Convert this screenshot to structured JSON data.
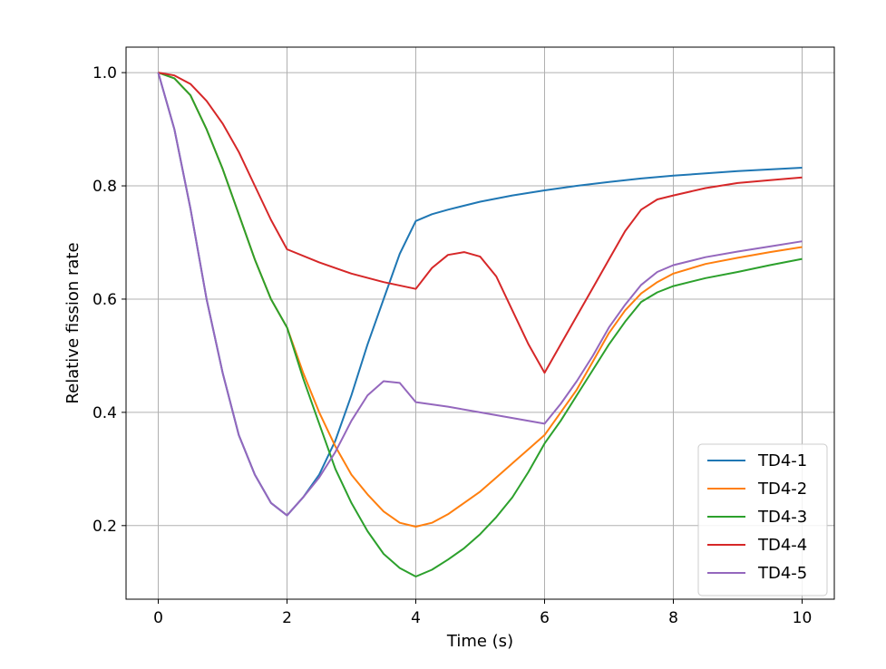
{
  "chart_data": {
    "type": "line",
    "xlabel": "Time (s)",
    "ylabel": "Relative fission rate",
    "xlim": [
      -0.5,
      10.5
    ],
    "ylim": [
      0.07,
      1.045
    ],
    "xticks": [
      0,
      2,
      4,
      6,
      8,
      10
    ],
    "yticks": [
      0.2,
      0.4,
      0.6,
      0.8,
      1.0
    ],
    "xtick_labels": [
      "0",
      "2",
      "4",
      "6",
      "8",
      "10"
    ],
    "ytick_labels": [
      "0.2",
      "0.4",
      "0.6",
      "0.8",
      "1.0"
    ],
    "grid": true,
    "legend_position": "lower-right",
    "series": [
      {
        "name": "TD4-1",
        "color": "#1f77b4",
        "x": [
          0,
          0.25,
          0.5,
          0.75,
          1.0,
          1.25,
          1.5,
          1.75,
          2.0,
          2.25,
          2.5,
          2.75,
          3.0,
          3.25,
          3.5,
          3.75,
          4.0,
          4.25,
          4.5,
          5.0,
          5.5,
          6.0,
          6.5,
          7.0,
          7.5,
          8.0,
          8.5,
          9.0,
          9.5,
          10.0
        ],
        "y": [
          1.0,
          0.9,
          0.76,
          0.6,
          0.47,
          0.36,
          0.29,
          0.24,
          0.218,
          0.25,
          0.29,
          0.35,
          0.43,
          0.52,
          0.6,
          0.68,
          0.738,
          0.75,
          0.758,
          0.772,
          0.783,
          0.792,
          0.8,
          0.807,
          0.813,
          0.818,
          0.822,
          0.826,
          0.829,
          0.832
        ]
      },
      {
        "name": "TD4-2",
        "color": "#ff7f0e",
        "x": [
          0,
          0.25,
          0.5,
          0.75,
          1.0,
          1.25,
          1.5,
          1.75,
          2.0,
          2.25,
          2.5,
          2.75,
          3.0,
          3.25,
          3.5,
          3.75,
          4.0,
          4.25,
          4.5,
          4.75,
          5.0,
          5.25,
          5.5,
          5.75,
          6.0,
          6.25,
          6.5,
          6.75,
          7.0,
          7.25,
          7.5,
          7.75,
          8.0,
          8.5,
          9.0,
          9.5,
          10.0
        ],
        "y": [
          1.0,
          0.99,
          0.96,
          0.9,
          0.83,
          0.75,
          0.67,
          0.6,
          0.55,
          0.47,
          0.4,
          0.34,
          0.29,
          0.255,
          0.225,
          0.205,
          0.198,
          0.205,
          0.22,
          0.24,
          0.26,
          0.285,
          0.31,
          0.335,
          0.36,
          0.4,
          0.44,
          0.49,
          0.54,
          0.58,
          0.61,
          0.63,
          0.645,
          0.662,
          0.673,
          0.683,
          0.692
        ]
      },
      {
        "name": "TD4-3",
        "color": "#2ca02c",
        "x": [
          0,
          0.25,
          0.5,
          0.75,
          1.0,
          1.25,
          1.5,
          1.75,
          2.0,
          2.25,
          2.5,
          2.75,
          3.0,
          3.25,
          3.5,
          3.75,
          4.0,
          4.25,
          4.5,
          4.75,
          5.0,
          5.25,
          5.5,
          5.75,
          6.0,
          6.25,
          6.5,
          6.75,
          7.0,
          7.25,
          7.5,
          7.75,
          8.0,
          8.5,
          9.0,
          9.5,
          10.0
        ],
        "y": [
          1.0,
          0.99,
          0.96,
          0.9,
          0.83,
          0.75,
          0.67,
          0.6,
          0.55,
          0.46,
          0.38,
          0.3,
          0.24,
          0.19,
          0.15,
          0.125,
          0.11,
          0.122,
          0.14,
          0.16,
          0.185,
          0.215,
          0.25,
          0.295,
          0.345,
          0.385,
          0.43,
          0.475,
          0.52,
          0.56,
          0.595,
          0.612,
          0.623,
          0.637,
          0.648,
          0.66,
          0.671
        ]
      },
      {
        "name": "TD4-4",
        "color": "#d62728",
        "x": [
          0,
          0.25,
          0.5,
          0.75,
          1.0,
          1.25,
          1.5,
          1.75,
          2.0,
          2.5,
          3.0,
          3.5,
          4.0,
          4.25,
          4.5,
          4.75,
          5.0,
          5.25,
          5.5,
          5.75,
          6.0,
          6.25,
          6.5,
          6.75,
          7.0,
          7.25,
          7.5,
          7.75,
          8.0,
          8.5,
          9.0,
          9.5,
          10.0
        ],
        "y": [
          1.0,
          0.995,
          0.98,
          0.95,
          0.91,
          0.86,
          0.8,
          0.74,
          0.688,
          0.665,
          0.645,
          0.63,
          0.618,
          0.655,
          0.678,
          0.683,
          0.675,
          0.64,
          0.58,
          0.52,
          0.47,
          0.52,
          0.57,
          0.62,
          0.67,
          0.72,
          0.758,
          0.776,
          0.783,
          0.796,
          0.805,
          0.81,
          0.815
        ]
      },
      {
        "name": "TD4-5",
        "color": "#9467bd",
        "x": [
          0,
          0.25,
          0.5,
          0.75,
          1.0,
          1.25,
          1.5,
          1.75,
          2.0,
          2.25,
          2.5,
          2.75,
          3.0,
          3.25,
          3.5,
          3.75,
          4.0,
          4.5,
          5.0,
          5.5,
          6.0,
          6.25,
          6.5,
          6.75,
          7.0,
          7.25,
          7.5,
          7.75,
          8.0,
          8.5,
          9.0,
          9.5,
          10.0
        ],
        "y": [
          1.0,
          0.9,
          0.76,
          0.6,
          0.47,
          0.36,
          0.29,
          0.24,
          0.218,
          0.25,
          0.285,
          0.33,
          0.385,
          0.43,
          0.455,
          0.452,
          0.418,
          0.41,
          0.4,
          0.39,
          0.38,
          0.415,
          0.455,
          0.5,
          0.55,
          0.59,
          0.625,
          0.648,
          0.66,
          0.674,
          0.684,
          0.693,
          0.702
        ]
      }
    ]
  }
}
